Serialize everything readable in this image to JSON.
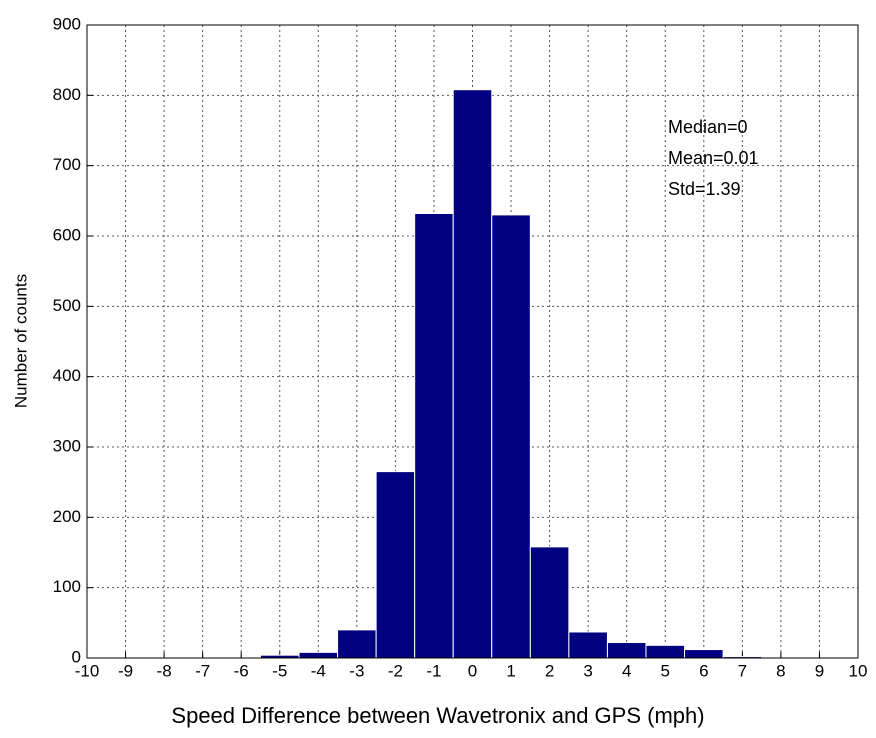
{
  "chart_data": {
    "type": "histogram",
    "x_label": "Speed Difference between Wavetronix and GPS (mph)",
    "y_label": "Number of counts",
    "annotations": [
      "Median=0",
      "Mean=0.01",
      "Std=1.39"
    ],
    "bins": [
      -5.5,
      -4.5,
      -3.5,
      -2.5,
      -1.5,
      -0.5,
      0.5,
      1.5,
      2.5,
      3.5,
      4.5,
      5.5,
      6.5,
      7.5
    ],
    "values": [
      4,
      8,
      40,
      265,
      632,
      808,
      630,
      158,
      37,
      22,
      18,
      12,
      2
    ],
    "color": "#000080",
    "xlim": [
      -10,
      10
    ],
    "xticks": [
      -10,
      -9,
      -8,
      -7,
      -6,
      -5,
      -4,
      -3,
      -2,
      -1,
      0,
      1,
      2,
      3,
      4,
      5,
      6,
      7,
      8,
      9,
      10
    ],
    "ylim": [
      0,
      900
    ],
    "yticks": [
      0,
      100,
      200,
      300,
      400,
      500,
      600,
      700,
      800,
      900
    ],
    "grid": true
  }
}
